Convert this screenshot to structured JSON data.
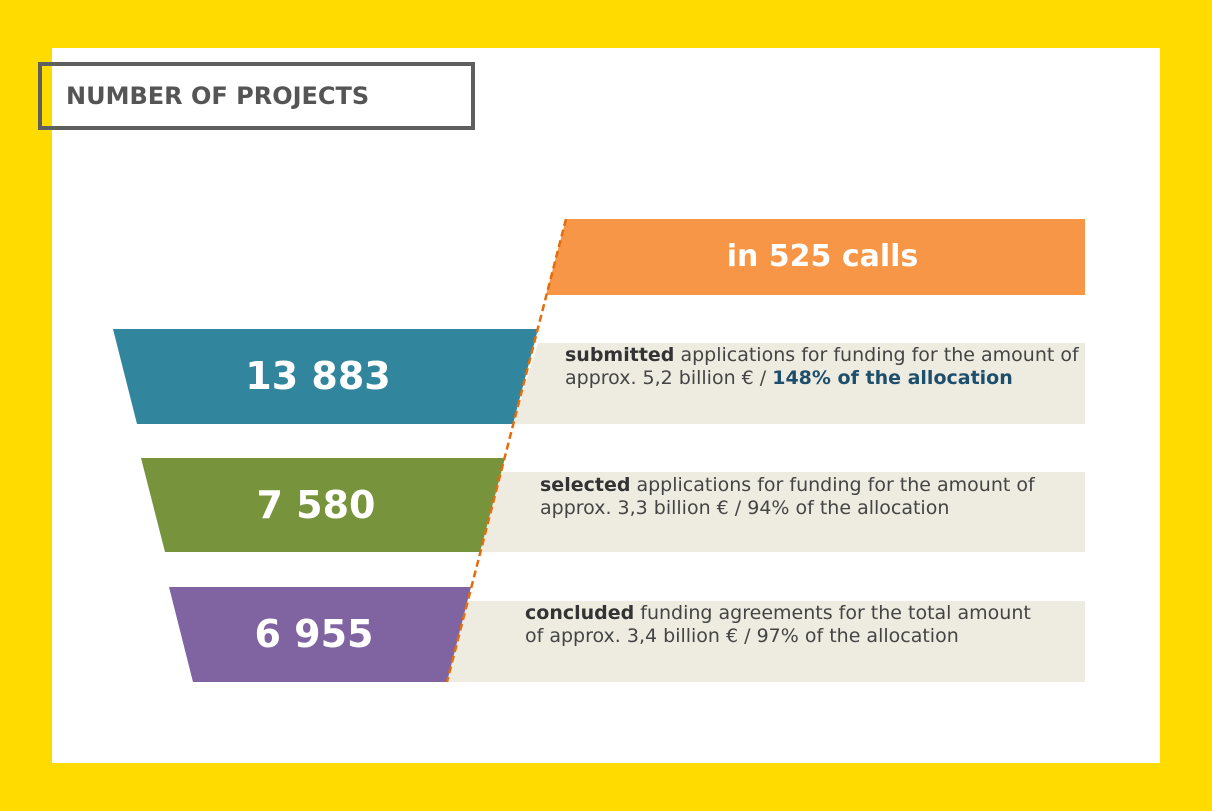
{
  "title": "NUMBER OF PROJECTS",
  "header": "in 525 calls",
  "rows": [
    {
      "value": "13 883",
      "bold": "submitted",
      "text": " applications for funding for the amount of approx. 5,2 billion € / ",
      "highlight": "148% of the allocation"
    },
    {
      "value": "7 580",
      "bold": "selected",
      "text": " applications for funding for the amount of approx. 3,3 billion € / 94% of the allocation"
    },
    {
      "value": "6 955",
      "bold": "concluded",
      "text": " funding agreements for the total amount of approx. 3,4 billion € / 97% of the allocation"
    }
  ]
}
